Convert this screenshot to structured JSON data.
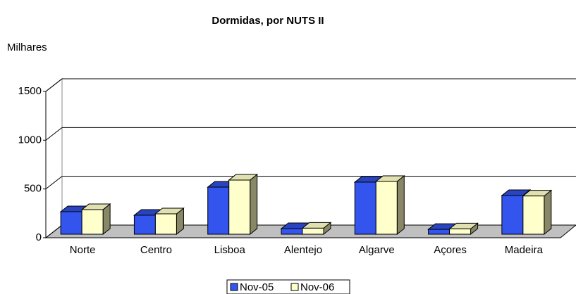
{
  "chart_data": {
    "type": "bar3d",
    "title": "Dormidas, por NUTS II",
    "y_label": "Milhares",
    "categories": [
      "Norte",
      "Centro",
      "Lisboa",
      "Alentejo",
      "Algarve",
      "Açores",
      "Madeira"
    ],
    "series": [
      {
        "name": "Nov-05",
        "color": "#3355ee",
        "values": [
          231,
          195,
          483,
          58,
          534,
          50,
          397
        ]
      },
      {
        "name": "Nov-06",
        "color": "#ffffcc",
        "values": [
          252,
          209,
          555,
          62,
          541,
          55,
          392
        ]
      }
    ],
    "ylim": [
      0,
      1500
    ],
    "yticks": [
      0,
      500,
      1000,
      1500
    ],
    "grid": true,
    "legend": "bottom"
  }
}
